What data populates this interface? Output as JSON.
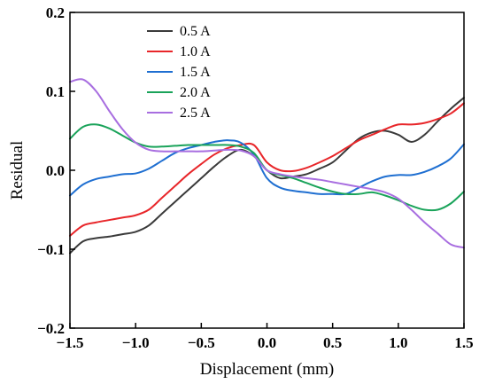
{
  "chart_data": {
    "type": "line",
    "xlabel": "Displacement (mm)",
    "ylabel": "Residual",
    "xlim": [
      -1.5,
      1.5
    ],
    "ylim": [
      -0.2,
      0.2
    ],
    "x_ticks": [
      -1.5,
      -1.0,
      -0.5,
      0.0,
      0.5,
      1.0,
      1.5
    ],
    "x_tick_labels": [
      "−1.5",
      "−1.0",
      "−0.5",
      "0.0",
      "0.5",
      "1.0",
      "1.5"
    ],
    "y_ticks": [
      -0.2,
      -0.1,
      0.0,
      0.1,
      0.2
    ],
    "y_tick_labels": [
      "−0.2",
      "−0.1",
      "0.0",
      "0.1",
      "0.2"
    ],
    "grid": false,
    "legend_position": "top-center",
    "series": [
      {
        "name": "0.5 A",
        "color": "#3a3a3a",
        "x": [
          -1.5,
          -1.4,
          -1.3,
          -1.2,
          -1.1,
          -1.0,
          -0.9,
          -0.8,
          -0.7,
          -0.6,
          -0.5,
          -0.4,
          -0.3,
          -0.2,
          -0.1,
          0.0,
          0.1,
          0.2,
          0.3,
          0.4,
          0.5,
          0.6,
          0.7,
          0.8,
          0.9,
          1.0,
          1.1,
          1.2,
          1.3,
          1.4,
          1.5
        ],
        "y": [
          -0.105,
          -0.09,
          -0.086,
          -0.084,
          -0.081,
          -0.078,
          -0.07,
          -0.055,
          -0.04,
          -0.025,
          -0.01,
          0.005,
          0.018,
          0.026,
          0.018,
          0.0,
          -0.01,
          -0.008,
          -0.005,
          0.002,
          0.01,
          0.025,
          0.04,
          0.048,
          0.05,
          0.045,
          0.036,
          0.045,
          0.062,
          0.078,
          0.092
        ]
      },
      {
        "name": "1.0 A",
        "color": "#e8262a",
        "x": [
          -1.5,
          -1.4,
          -1.3,
          -1.2,
          -1.1,
          -1.0,
          -0.9,
          -0.8,
          -0.7,
          -0.6,
          -0.5,
          -0.4,
          -0.3,
          -0.2,
          -0.1,
          0.0,
          0.1,
          0.2,
          0.3,
          0.4,
          0.5,
          0.6,
          0.7,
          0.8,
          0.9,
          1.0,
          1.1,
          1.2,
          1.3,
          1.4,
          1.5
        ],
        "y": [
          -0.083,
          -0.07,
          -0.066,
          -0.063,
          -0.06,
          -0.057,
          -0.05,
          -0.035,
          -0.02,
          -0.005,
          0.008,
          0.02,
          0.028,
          0.032,
          0.032,
          0.01,
          0.0,
          -0.001,
          0.003,
          0.01,
          0.018,
          0.028,
          0.038,
          0.045,
          0.052,
          0.058,
          0.058,
          0.06,
          0.065,
          0.072,
          0.085
        ]
      },
      {
        "name": "1.5 A",
        "color": "#1f6fd1",
        "x": [
          -1.5,
          -1.4,
          -1.3,
          -1.2,
          -1.1,
          -1.0,
          -0.9,
          -0.8,
          -0.7,
          -0.6,
          -0.5,
          -0.4,
          -0.3,
          -0.2,
          -0.1,
          0.0,
          0.1,
          0.2,
          0.3,
          0.4,
          0.5,
          0.6,
          0.7,
          0.8,
          0.9,
          1.0,
          1.1,
          1.2,
          1.3,
          1.4,
          1.5
        ],
        "y": [
          -0.032,
          -0.018,
          -0.011,
          -0.008,
          -0.005,
          -0.004,
          0.002,
          0.012,
          0.022,
          0.028,
          0.032,
          0.036,
          0.038,
          0.035,
          0.02,
          -0.01,
          -0.022,
          -0.026,
          -0.028,
          -0.03,
          -0.03,
          -0.03,
          -0.022,
          -0.014,
          -0.008,
          -0.006,
          -0.006,
          -0.002,
          0.005,
          0.015,
          0.033
        ]
      },
      {
        "name": "2.0 A",
        "color": "#1aa35a",
        "x": [
          -1.5,
          -1.4,
          -1.3,
          -1.2,
          -1.1,
          -1.0,
          -0.9,
          -0.8,
          -0.7,
          -0.6,
          -0.5,
          -0.4,
          -0.3,
          -0.2,
          -0.1,
          0.0,
          0.1,
          0.2,
          0.3,
          0.4,
          0.5,
          0.6,
          0.7,
          0.8,
          0.9,
          1.0,
          1.1,
          1.2,
          1.3,
          1.4,
          1.5
        ],
        "y": [
          0.04,
          0.055,
          0.058,
          0.053,
          0.044,
          0.035,
          0.03,
          0.03,
          0.031,
          0.032,
          0.032,
          0.032,
          0.032,
          0.03,
          0.022,
          0.0,
          -0.006,
          -0.01,
          -0.016,
          -0.022,
          -0.027,
          -0.03,
          -0.03,
          -0.028,
          -0.032,
          -0.038,
          -0.045,
          -0.05,
          -0.05,
          -0.042,
          -0.027
        ]
      },
      {
        "name": "2.5 A",
        "color": "#a86ee0",
        "x": [
          -1.5,
          -1.4,
          -1.3,
          -1.2,
          -1.1,
          -1.0,
          -0.9,
          -0.8,
          -0.7,
          -0.6,
          -0.5,
          -0.4,
          -0.3,
          -0.2,
          -0.1,
          0.0,
          0.1,
          0.2,
          0.3,
          0.4,
          0.5,
          0.6,
          0.7,
          0.8,
          0.9,
          1.0,
          1.1,
          1.2,
          1.3,
          1.4,
          1.5
        ],
        "y": [
          0.112,
          0.115,
          0.1,
          0.075,
          0.052,
          0.035,
          0.026,
          0.024,
          0.024,
          0.024,
          0.024,
          0.025,
          0.026,
          0.025,
          0.018,
          0.0,
          -0.005,
          -0.008,
          -0.01,
          -0.012,
          -0.015,
          -0.018,
          -0.021,
          -0.024,
          -0.028,
          -0.036,
          -0.05,
          -0.066,
          -0.08,
          -0.094,
          -0.098
        ]
      }
    ]
  }
}
